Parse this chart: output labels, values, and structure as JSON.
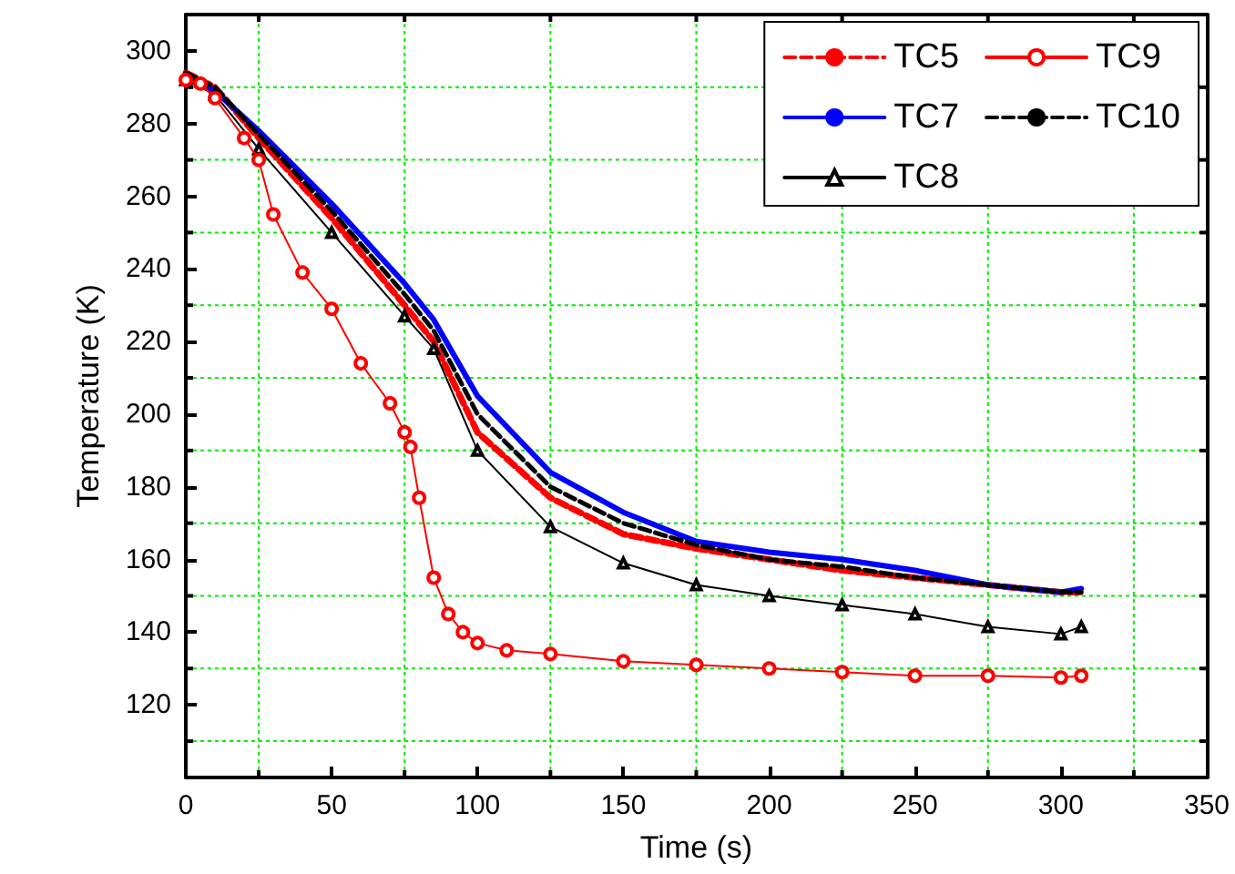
{
  "chart_data": {
    "type": "line",
    "xlabel": "Time (s)",
    "ylabel": "Temperature (K)",
    "xlim": [
      0,
      350
    ],
    "xticks": [
      0,
      {
        "value": 25,
        "label": null
      },
      50,
      {
        "value": 75,
        "label": null
      },
      100,
      {
        "value": 125,
        "label": null
      },
      150,
      {
        "value": 175,
        "label": null
      },
      200,
      {
        "value": 225,
        "label": null
      },
      250,
      {
        "value": 275,
        "label": null
      },
      300,
      {
        "value": 325,
        "label": null
      },
      350
    ],
    "ylim": [
      100,
      310
    ],
    "yticks": [
      {
        "value": 110,
        "label": null
      },
      120,
      {
        "value": 130,
        "label": null
      },
      140,
      {
        "value": 150,
        "label": null
      },
      160,
      {
        "value": 170,
        "label": null
      },
      180,
      {
        "value": 190,
        "label": null
      },
      200,
      {
        "value": 210,
        "label": null
      },
      220,
      {
        "value": 230,
        "label": null
      },
      240,
      {
        "value": 250,
        "label": null
      },
      260,
      {
        "value": 270,
        "label": null
      },
      280,
      {
        "value": 290,
        "label": null
      },
      300
    ],
    "grid": true,
    "legend": "top right",
    "series": [
      {
        "name": "TC5",
        "color": "#ff0000",
        "line_style": "dashed",
        "marker": "none",
        "x": [
          0,
          10,
          25,
          50,
          75,
          85,
          100,
          125,
          150,
          175,
          200,
          225,
          250,
          275,
          300,
          307
        ],
        "values": [
          294,
          290,
          276,
          254,
          230,
          220,
          195,
          177,
          167,
          163,
          160,
          157,
          155,
          153,
          151,
          151
        ]
      },
      {
        "name": "TC9",
        "color": "#ff0000",
        "line_style": "solid",
        "marker": "circle",
        "x": [
          0,
          5,
          10,
          20,
          25,
          30,
          40,
          50,
          60,
          70,
          75,
          77,
          80,
          85,
          90,
          95,
          100,
          110,
          125,
          150,
          175,
          200,
          225,
          250,
          275,
          300,
          307
        ],
        "values": [
          292,
          291,
          287,
          276,
          270,
          255,
          239,
          229,
          214,
          203,
          195,
          191,
          177,
          155,
          145,
          140,
          137,
          135,
          134,
          132,
          131,
          130,
          129,
          128,
          128,
          127.5,
          128
        ]
      },
      {
        "name": "TC7",
        "color": "#0000ff",
        "line_style": "solid",
        "marker": "none",
        "x": [
          0,
          10,
          25,
          50,
          75,
          85,
          100,
          125,
          150,
          175,
          200,
          225,
          250,
          275,
          300,
          307
        ],
        "values": [
          293,
          289,
          278,
          258,
          236,
          226,
          205,
          184,
          173,
          165,
          162,
          160,
          157,
          153,
          151,
          152
        ]
      },
      {
        "name": "TC10",
        "color": "#000000",
        "line_style": "dashed",
        "marker": "none",
        "x": [
          0,
          10,
          25,
          50,
          75,
          85,
          100,
          125,
          150,
          175,
          200,
          225,
          250,
          275,
          300,
          307
        ],
        "values": [
          294,
          290,
          277,
          256,
          233,
          223,
          200,
          180,
          170,
          164,
          160,
          158,
          155,
          153,
          151,
          151
        ]
      },
      {
        "name": "TC8",
        "color": "#000000",
        "line_style": "solid",
        "marker": "triangle",
        "x": [
          0,
          10,
          25,
          50,
          75,
          85,
          100,
          125,
          150,
          175,
          200,
          225,
          250,
          275,
          300,
          307
        ],
        "values": [
          292,
          288,
          273,
          250,
          227,
          218,
          190,
          169,
          159,
          153,
          150,
          147.5,
          145,
          141.5,
          139.5,
          141.5
        ]
      }
    ]
  }
}
